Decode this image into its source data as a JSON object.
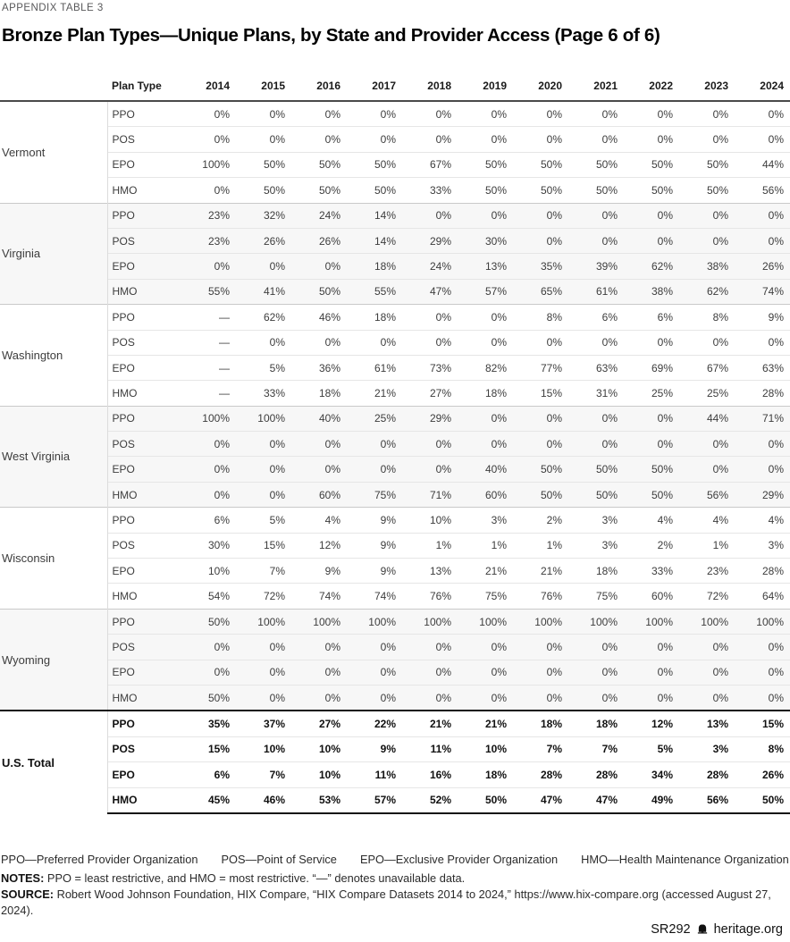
{
  "header": {
    "eyebrow": "APPENDIX TABLE 3",
    "title": "Bronze Plan Types—Unique Plans, by State and Provider Access (Page 6 of 6)"
  },
  "chart_data": {
    "type": "table",
    "columns": [
      "Plan Type",
      "2014",
      "2015",
      "2016",
      "2017",
      "2018",
      "2019",
      "2020",
      "2021",
      "2022",
      "2023",
      "2024"
    ],
    "groups": [
      {
        "state": "Vermont",
        "striped": false,
        "rows": [
          {
            "plan_type": "PPO",
            "values": [
              "0%",
              "0%",
              "0%",
              "0%",
              "0%",
              "0%",
              "0%",
              "0%",
              "0%",
              "0%",
              "0%"
            ]
          },
          {
            "plan_type": "POS",
            "values": [
              "0%",
              "0%",
              "0%",
              "0%",
              "0%",
              "0%",
              "0%",
              "0%",
              "0%",
              "0%",
              "0%"
            ]
          },
          {
            "plan_type": "EPO",
            "values": [
              "100%",
              "50%",
              "50%",
              "50%",
              "67%",
              "50%",
              "50%",
              "50%",
              "50%",
              "50%",
              "44%"
            ]
          },
          {
            "plan_type": "HMO",
            "values": [
              "0%",
              "50%",
              "50%",
              "50%",
              "33%",
              "50%",
              "50%",
              "50%",
              "50%",
              "50%",
              "56%"
            ]
          }
        ]
      },
      {
        "state": "Virginia",
        "striped": true,
        "rows": [
          {
            "plan_type": "PPO",
            "values": [
              "23%",
              "32%",
              "24%",
              "14%",
              "0%",
              "0%",
              "0%",
              "0%",
              "0%",
              "0%",
              "0%"
            ]
          },
          {
            "plan_type": "POS",
            "values": [
              "23%",
              "26%",
              "26%",
              "14%",
              "29%",
              "30%",
              "0%",
              "0%",
              "0%",
              "0%",
              "0%"
            ]
          },
          {
            "plan_type": "EPO",
            "values": [
              "0%",
              "0%",
              "0%",
              "18%",
              "24%",
              "13%",
              "35%",
              "39%",
              "62%",
              "38%",
              "26%"
            ]
          },
          {
            "plan_type": "HMO",
            "values": [
              "55%",
              "41%",
              "50%",
              "55%",
              "47%",
              "57%",
              "65%",
              "61%",
              "38%",
              "62%",
              "74%"
            ]
          }
        ]
      },
      {
        "state": "Washington",
        "striped": false,
        "rows": [
          {
            "plan_type": "PPO",
            "values": [
              "—",
              "62%",
              "46%",
              "18%",
              "0%",
              "0%",
              "8%",
              "6%",
              "6%",
              "8%",
              "9%"
            ]
          },
          {
            "plan_type": "POS",
            "values": [
              "—",
              "0%",
              "0%",
              "0%",
              "0%",
              "0%",
              "0%",
              "0%",
              "0%",
              "0%",
              "0%"
            ]
          },
          {
            "plan_type": "EPO",
            "values": [
              "—",
              "5%",
              "36%",
              "61%",
              "73%",
              "82%",
              "77%",
              "63%",
              "69%",
              "67%",
              "63%"
            ]
          },
          {
            "plan_type": "HMO",
            "values": [
              "—",
              "33%",
              "18%",
              "21%",
              "27%",
              "18%",
              "15%",
              "31%",
              "25%",
              "25%",
              "28%"
            ]
          }
        ]
      },
      {
        "state": "West Virginia",
        "striped": true,
        "rows": [
          {
            "plan_type": "PPO",
            "values": [
              "100%",
              "100%",
              "40%",
              "25%",
              "29%",
              "0%",
              "0%",
              "0%",
              "0%",
              "44%",
              "71%"
            ]
          },
          {
            "plan_type": "POS",
            "values": [
              "0%",
              "0%",
              "0%",
              "0%",
              "0%",
              "0%",
              "0%",
              "0%",
              "0%",
              "0%",
              "0%"
            ]
          },
          {
            "plan_type": "EPO",
            "values": [
              "0%",
              "0%",
              "0%",
              "0%",
              "0%",
              "40%",
              "50%",
              "50%",
              "50%",
              "0%",
              "0%"
            ]
          },
          {
            "plan_type": "HMO",
            "values": [
              "0%",
              "0%",
              "60%",
              "75%",
              "71%",
              "60%",
              "50%",
              "50%",
              "50%",
              "56%",
              "29%"
            ]
          }
        ]
      },
      {
        "state": "Wisconsin",
        "striped": false,
        "rows": [
          {
            "plan_type": "PPO",
            "values": [
              "6%",
              "5%",
              "4%",
              "9%",
              "10%",
              "3%",
              "2%",
              "3%",
              "4%",
              "4%",
              "4%"
            ]
          },
          {
            "plan_type": "POS",
            "values": [
              "30%",
              "15%",
              "12%",
              "9%",
              "1%",
              "1%",
              "1%",
              "3%",
              "2%",
              "1%",
              "3%"
            ]
          },
          {
            "plan_type": "EPO",
            "values": [
              "10%",
              "7%",
              "9%",
              "9%",
              "13%",
              "21%",
              "21%",
              "18%",
              "33%",
              "23%",
              "28%"
            ]
          },
          {
            "plan_type": "HMO",
            "values": [
              "54%",
              "72%",
              "74%",
              "74%",
              "76%",
              "75%",
              "76%",
              "75%",
              "60%",
              "72%",
              "64%"
            ]
          }
        ]
      },
      {
        "state": "Wyoming",
        "striped": true,
        "rows": [
          {
            "plan_type": "PPO",
            "values": [
              "50%",
              "100%",
              "100%",
              "100%",
              "100%",
              "100%",
              "100%",
              "100%",
              "100%",
              "100%",
              "100%"
            ]
          },
          {
            "plan_type": "POS",
            "values": [
              "0%",
              "0%",
              "0%",
              "0%",
              "0%",
              "0%",
              "0%",
              "0%",
              "0%",
              "0%",
              "0%"
            ]
          },
          {
            "plan_type": "EPO",
            "values": [
              "0%",
              "0%",
              "0%",
              "0%",
              "0%",
              "0%",
              "0%",
              "0%",
              "0%",
              "0%",
              "0%"
            ]
          },
          {
            "plan_type": "HMO",
            "values": [
              "50%",
              "0%",
              "0%",
              "0%",
              "0%",
              "0%",
              "0%",
              "0%",
              "0%",
              "0%",
              "0%"
            ]
          }
        ]
      },
      {
        "state": "U.S. Total",
        "striped": false,
        "is_total": true,
        "rows": [
          {
            "plan_type": "PPO",
            "values": [
              "35%",
              "37%",
              "27%",
              "22%",
              "21%",
              "21%",
              "18%",
              "18%",
              "12%",
              "13%",
              "15%"
            ]
          },
          {
            "plan_type": "POS",
            "values": [
              "15%",
              "10%",
              "10%",
              "9%",
              "11%",
              "10%",
              "7%",
              "7%",
              "5%",
              "3%",
              "8%"
            ]
          },
          {
            "plan_type": "EPO",
            "values": [
              "6%",
              "7%",
              "10%",
              "11%",
              "16%",
              "18%",
              "28%",
              "28%",
              "34%",
              "28%",
              "26%"
            ]
          },
          {
            "plan_type": "HMO",
            "values": [
              "45%",
              "46%",
              "53%",
              "57%",
              "52%",
              "50%",
              "47%",
              "47%",
              "49%",
              "56%",
              "50%"
            ]
          }
        ]
      }
    ]
  },
  "footer": {
    "abbreviations": [
      "PPO—Preferred Provider Organization",
      "POS—Point of Service",
      "EPO—Exclusive Provider Organization",
      "HMO—Health Maintenance Organization"
    ],
    "notes_label": "NOTES:",
    "notes_text": " PPO = least restrictive, and HMO = most restrictive. “—” denotes unavailable data.",
    "source_label": "SOURCE:",
    "source_text": " Robert Wood Johnson Foundation, HIX Compare, “HIX Compare Datasets 2014 to 2024,” https://www.hix-compare.org (accessed August 27, 2024).",
    "doc_id": "SR292",
    "site": "heritage.org"
  },
  "colors": {
    "stripe": "#f7f7f7",
    "header_rule": "#4a4a4a",
    "thick_rule": "#121212",
    "row_rule": "#e6e6e6",
    "group_rule": "#c9c9c9",
    "eyebrow_text": "#58585a",
    "body_text": "#3d3d3d"
  }
}
